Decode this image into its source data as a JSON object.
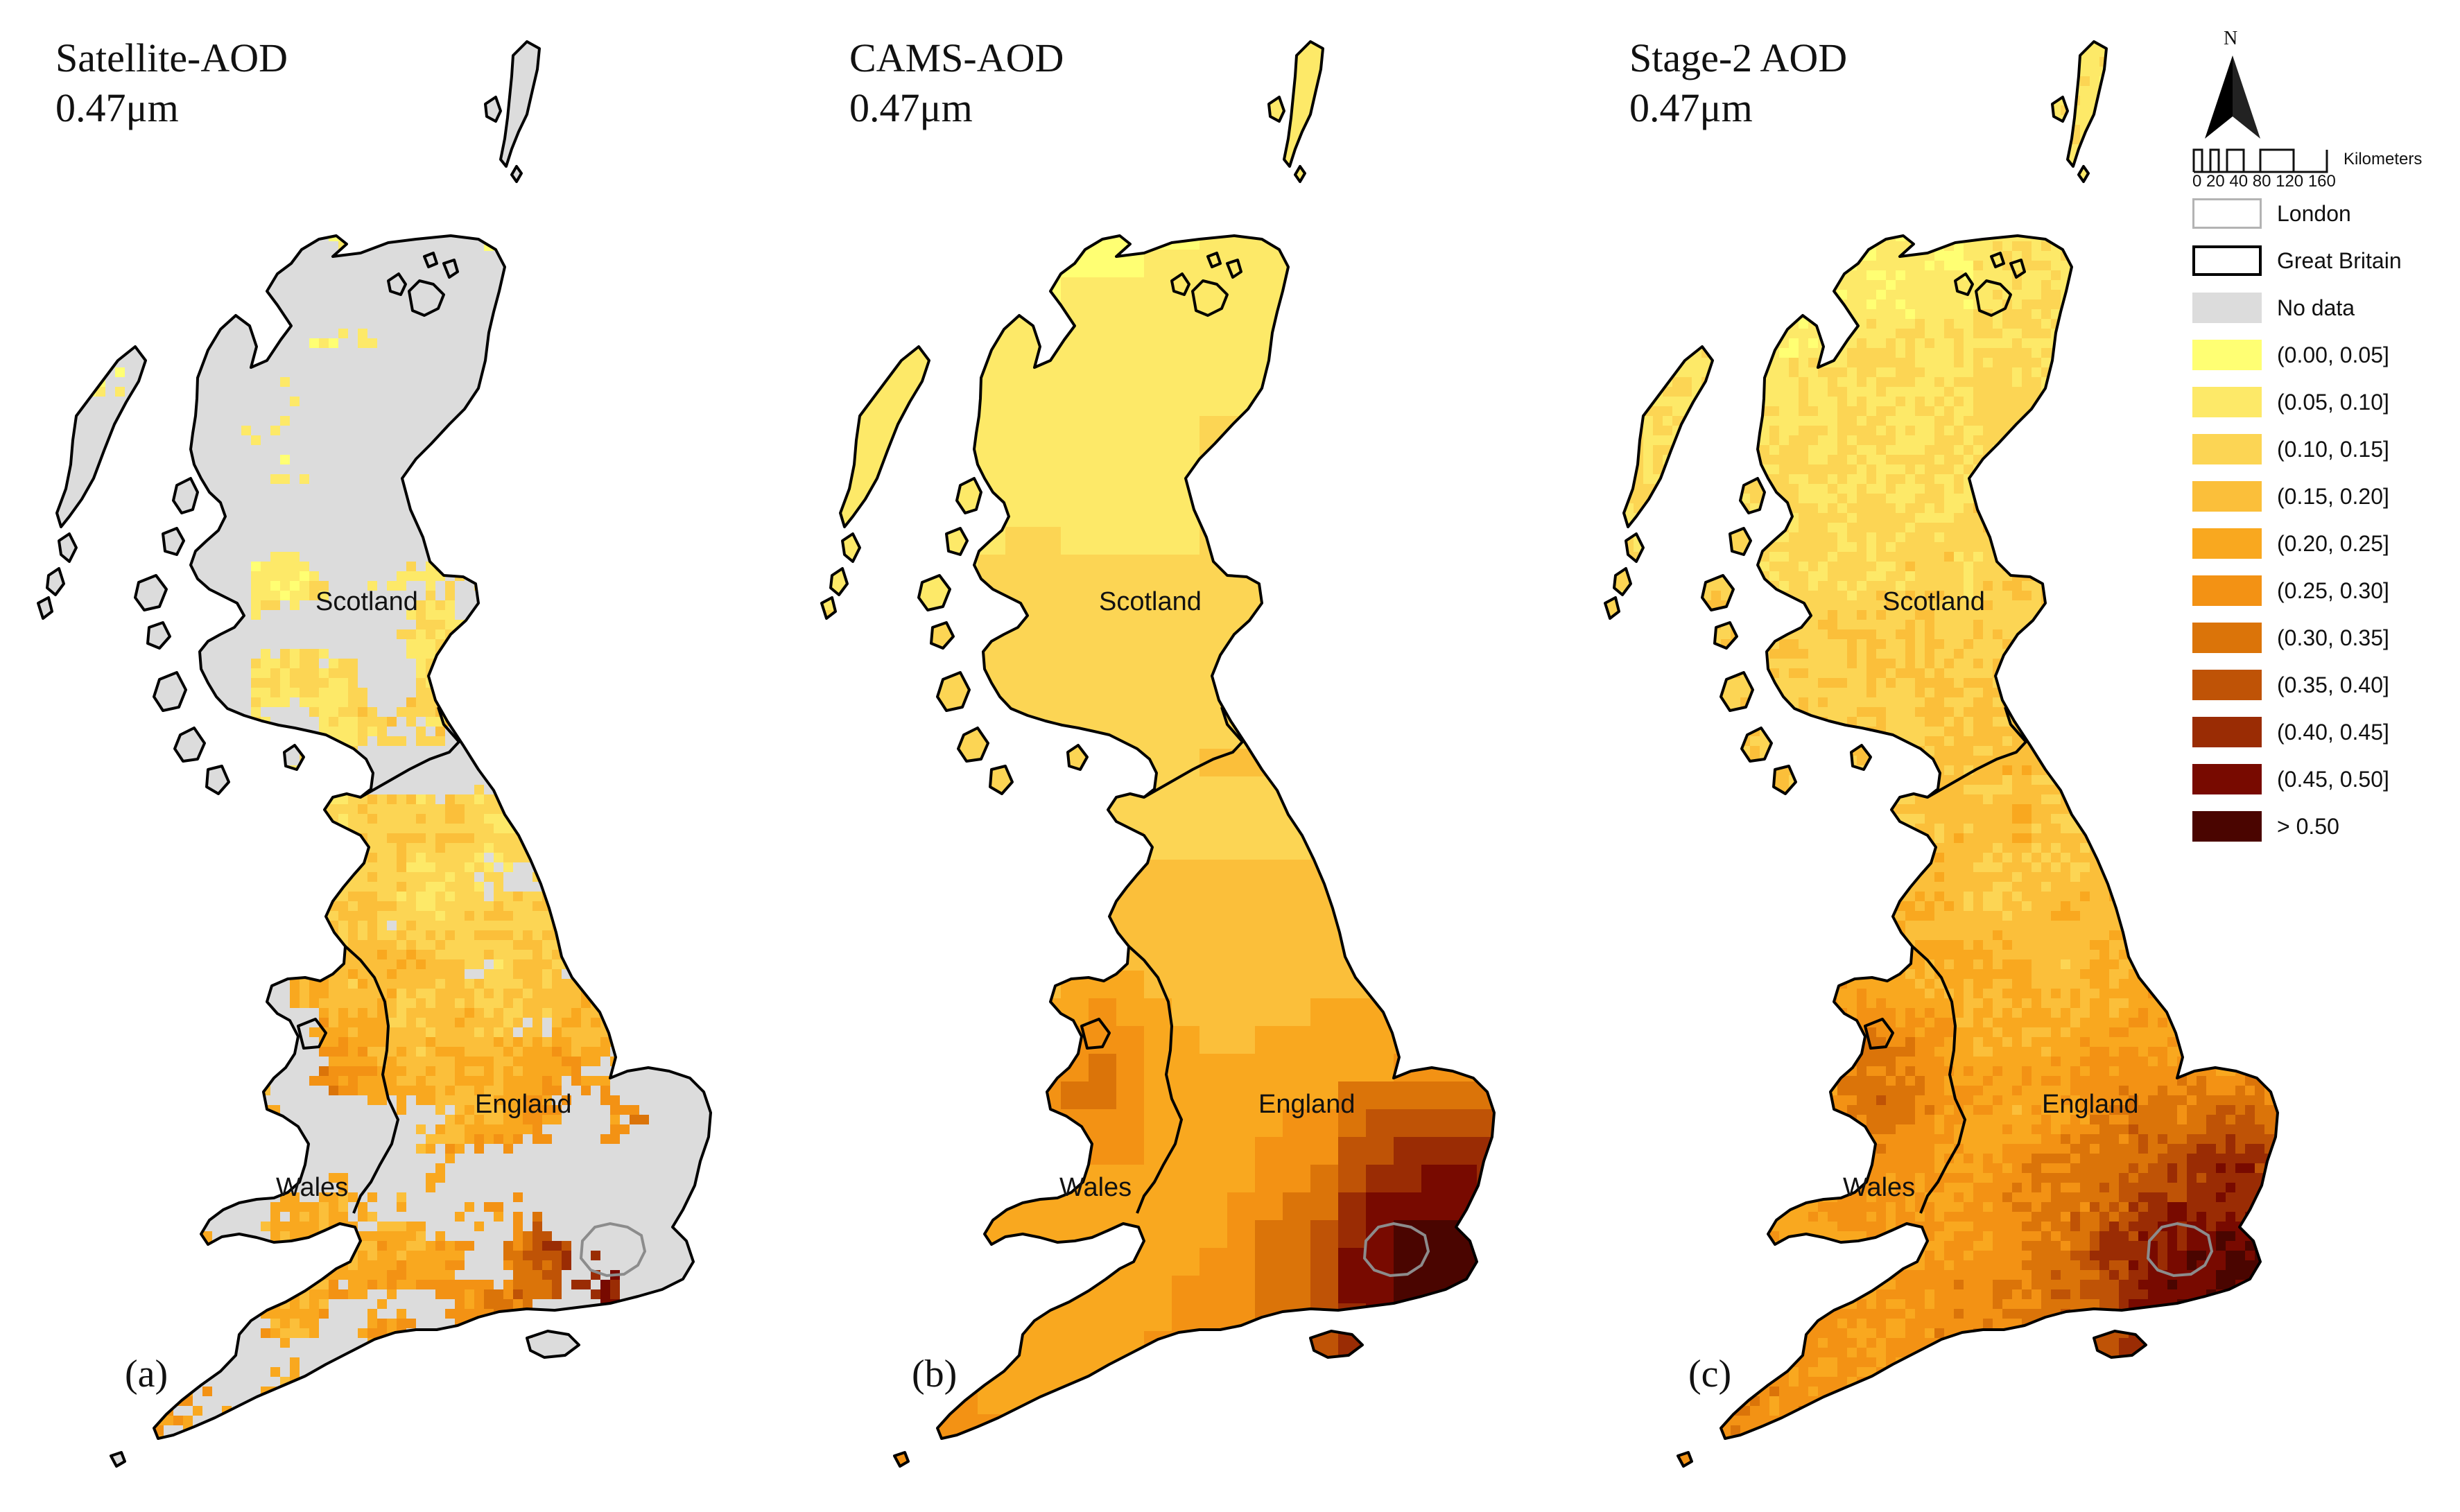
{
  "panels": [
    {
      "title_line1": "Satellite-AOD",
      "title_line2": "0.47μm",
      "label": "(a)",
      "mode": "satellite"
    },
    {
      "title_line1": "CAMS-AOD",
      "title_line2": "0.47μm",
      "label": "(b)",
      "mode": "cams"
    },
    {
      "title_line1": "Stage-2 AOD",
      "title_line2": "0.47μm",
      "label": "(c)",
      "mode": "stage2"
    }
  ],
  "region_labels": {
    "scotland": "Scotland",
    "england": "England",
    "wales": "Wales"
  },
  "legend": {
    "north": "N",
    "scale_unit": "Kilometers",
    "scale_ticks": "0 20 40    80   120  160",
    "boundary_items": [
      {
        "label": "London",
        "stroke": "#b3b3b3"
      },
      {
        "label": "Great Britain",
        "stroke": "#000000"
      }
    ],
    "nodata": {
      "label": "No data",
      "color": "#dcdcdc"
    },
    "classes": [
      {
        "label": "(0.00, 0.05]",
        "color": "#ffff73"
      },
      {
        "label": "(0.05, 0.10]",
        "color": "#fde968"
      },
      {
        "label": "(0.10, 0.15]",
        "color": "#fcd554"
      },
      {
        "label": "(0.15, 0.20]",
        "color": "#fbbf3a"
      },
      {
        "label": "(0.20, 0.25]",
        "color": "#f9a81f"
      },
      {
        "label": "(0.25, 0.30]",
        "color": "#f39214"
      },
      {
        "label": "(0.30, 0.35]",
        "color": "#db7409"
      },
      {
        "label": "(0.35, 0.40]",
        "color": "#bf5306"
      },
      {
        "label": "(0.40, 0.45]",
        "color": "#9a2c04"
      },
      {
        "label": "(0.45, 0.50]",
        "color": "#780a00"
      },
      {
        "label": "> 0.50",
        "color": "#4a0500"
      }
    ]
  }
}
